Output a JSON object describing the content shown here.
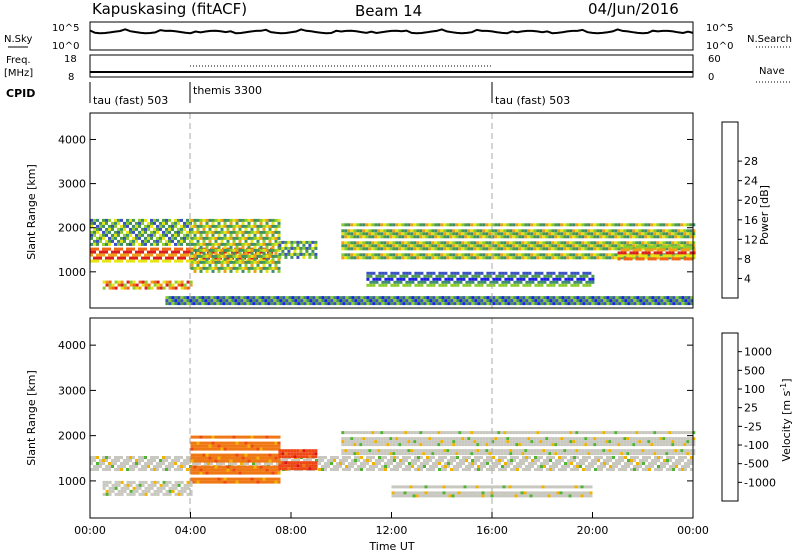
{
  "header": {
    "station": "Kapuskasing (fitACF)",
    "beam": "Beam 14",
    "date": "04/Jun/2016"
  },
  "noise_panel": {
    "left_label": "N.Sky",
    "right_label": "N.Search",
    "left_ticks": [
      "10^5",
      "10^0"
    ],
    "right_ticks": [
      "10^5",
      "10^0"
    ]
  },
  "freq_panel": {
    "left_label_line1": "Freq.",
    "left_label_line2": "[MHz]",
    "right_label": "Nave",
    "left_ticks": [
      "18",
      "8"
    ],
    "right_ticks": [
      "60",
      "0"
    ]
  },
  "cpid_panel": {
    "label": "CPID",
    "segments": [
      {
        "start_hour": 0,
        "end_hour": 4,
        "name": "tau (fast) 503"
      },
      {
        "start_hour": 4,
        "end_hour": 16,
        "name": "themis 3300"
      },
      {
        "start_hour": 16,
        "end_hour": 24,
        "name": "tau (fast) 503"
      }
    ]
  },
  "chart_data": [
    {
      "type": "heatmap",
      "quantity": "power",
      "ylabel": "Slant Range [km]",
      "xlim_hours": [
        0,
        24
      ],
      "ylim": [
        180,
        4600
      ],
      "y_ticks": [
        1000,
        2000,
        3000,
        4000
      ],
      "colorbar": {
        "label": "Power [dB]",
        "ticks": [
          "4",
          "8",
          "12",
          "16",
          "20",
          "24",
          "28"
        ],
        "colors": [
          "#1e1ee6",
          "#3a4fc2",
          "#3c8c6e",
          "#4a9a4a",
          "#8ccc2c",
          "#e6e614",
          "#f0a014",
          "#f06414",
          "#dc1e1e"
        ]
      },
      "regions": [
        {
          "t_start": 0.0,
          "t_end": 7.2,
          "r_start": 1250,
          "r_end": 1550,
          "level": 0.85
        },
        {
          "t_start": 0.5,
          "t_end": 4.0,
          "r_start": 600,
          "r_end": 800,
          "level": 0.8
        },
        {
          "t_start": 0.0,
          "t_end": 4.0,
          "r_start": 1600,
          "r_end": 2200,
          "level": 0.4
        },
        {
          "t_start": 4.0,
          "t_end": 7.5,
          "r_start": 1000,
          "r_end": 2200,
          "level": 0.55
        },
        {
          "t_start": 7.5,
          "t_end": 9.0,
          "r_start": 1300,
          "r_end": 1700,
          "level": 0.35
        },
        {
          "t_start": 10.0,
          "t_end": 24.0,
          "r_start": 1300,
          "r_end": 2100,
          "level": 0.45
        },
        {
          "t_start": 11.0,
          "t_end": 20.0,
          "r_start": 700,
          "r_end": 1000,
          "level": 0.3
        },
        {
          "t_start": 21.0,
          "t_end": 24.0,
          "r_start": 1300,
          "r_end": 1600,
          "level": 0.8
        },
        {
          "t_start": 3.0,
          "t_end": 24.0,
          "r_start": 200,
          "r_end": 450,
          "level": 0.3
        }
      ]
    },
    {
      "type": "heatmap",
      "quantity": "velocity",
      "xlabel": "Time UT",
      "ylabel": "Slant Range [km]",
      "xlim_hours": [
        0,
        24
      ],
      "ylim": [
        180,
        4600
      ],
      "x_ticks": [
        "00:00",
        "04:00",
        "08:00",
        "12:00",
        "16:00",
        "20:00",
        "00:00"
      ],
      "y_ticks": [
        1000,
        2000,
        3000,
        4000
      ],
      "colorbar": {
        "label": "Velocity [m s",
        "label_sup": "-1",
        "label_close": "]",
        "ticks": [
          "1000",
          "500",
          "100",
          "25",
          "-25",
          "-100",
          "-500",
          "-1000"
        ],
        "colors": [
          "#1e3cbe",
          "#3c64b4",
          "#3c8c6e",
          "#50b432",
          "#c8c8c0",
          "#f0b400",
          "#f07814",
          "#f04614",
          "#dc1414"
        ]
      },
      "regions": [
        {
          "t_start": 0.0,
          "t_end": 24.0,
          "r_start": 1250,
          "r_end": 1550,
          "level": 0.0
        },
        {
          "t_start": 4.0,
          "t_end": 7.5,
          "r_start": 1000,
          "r_end": 2000,
          "level": -0.6
        },
        {
          "t_start": 7.5,
          "t_end": 9.0,
          "r_start": 1200,
          "r_end": 1700,
          "level": -0.8
        },
        {
          "t_start": 10.0,
          "t_end": 24.0,
          "r_start": 1600,
          "r_end": 2100,
          "level": 0.0
        },
        {
          "t_start": 0.5,
          "t_end": 4.0,
          "r_start": 700,
          "r_end": 1000,
          "level": 0.05
        },
        {
          "t_start": 12.0,
          "t_end": 20.0,
          "r_start": 700,
          "r_end": 900,
          "level": 0.0
        }
      ]
    }
  ]
}
